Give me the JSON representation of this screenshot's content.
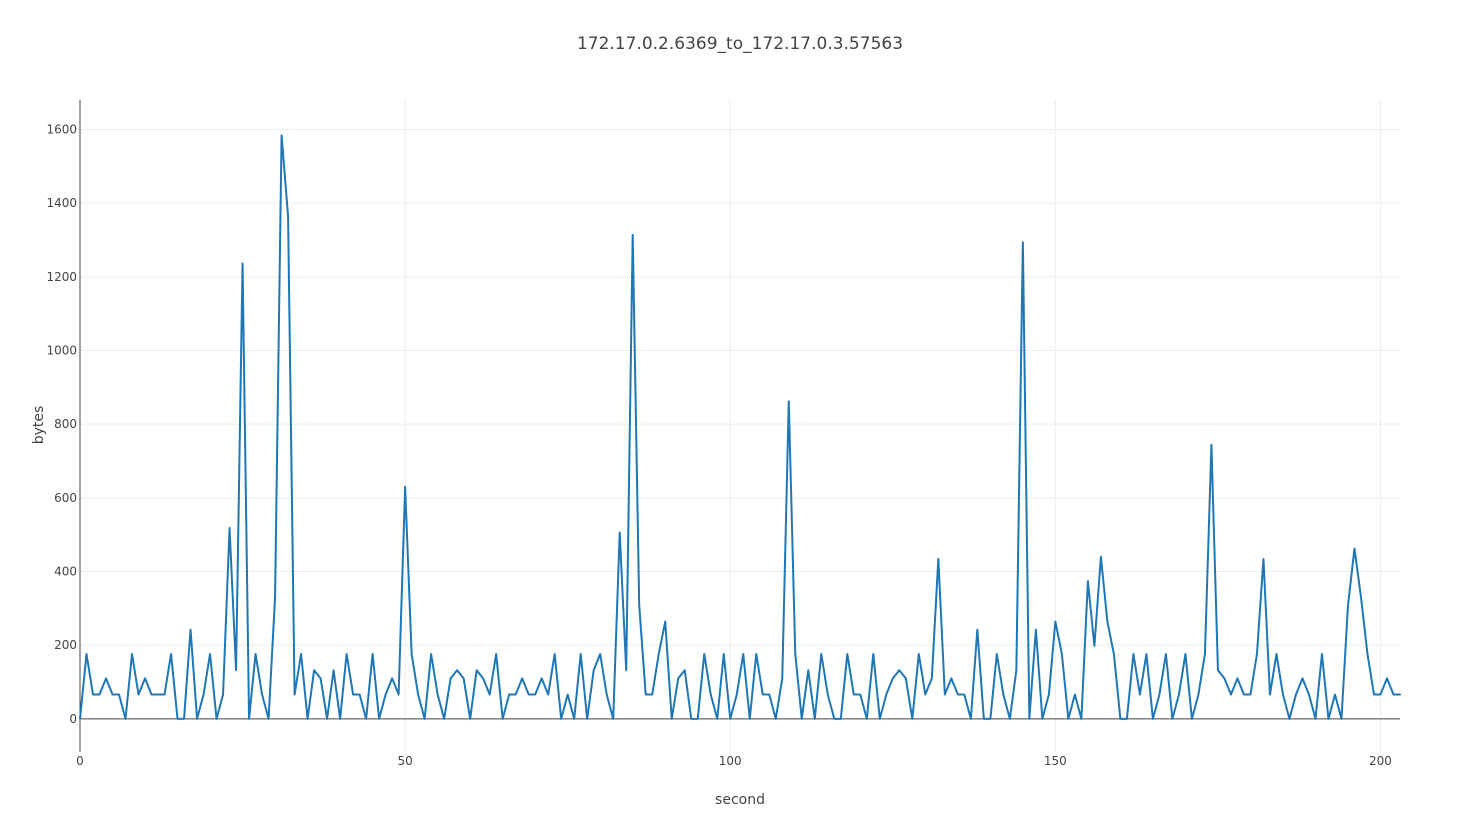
{
  "chart_data": {
    "type": "line",
    "title": "172.17.0.2.6369_to_172.17.0.3.57563",
    "xlabel": "second",
    "ylabel": "bytes",
    "xlim": [
      0,
      203
    ],
    "ylim": [
      -90,
      1680
    ],
    "xticks": [
      0,
      50,
      100,
      150,
      200
    ],
    "yticks": [
      0,
      200,
      400,
      600,
      800,
      1000,
      1200,
      1400,
      1600
    ],
    "grid": true,
    "line_color": "#1f77b4",
    "series": [
      {
        "x": [
          0,
          1,
          2,
          3,
          4,
          5,
          6,
          7,
          8,
          9,
          10,
          11,
          12,
          13,
          14,
          15,
          16,
          17,
          18,
          19,
          20,
          21,
          22,
          23,
          24,
          25,
          26,
          27,
          28,
          29,
          30,
          31,
          32,
          33,
          34,
          35,
          36,
          37,
          38,
          39,
          40,
          41,
          42,
          43,
          44,
          45,
          46,
          47,
          48,
          49,
          50,
          51,
          52,
          53,
          54,
          55,
          56,
          57,
          58,
          59,
          60,
          61,
          62,
          63,
          64,
          65,
          66,
          67,
          68,
          69,
          70,
          71,
          72,
          73,
          74,
          75,
          76,
          77,
          78,
          79,
          80,
          81,
          82,
          83,
          84,
          85,
          86,
          87,
          88,
          89,
          90,
          91,
          92,
          93,
          94,
          95,
          96,
          97,
          98,
          99,
          100,
          101,
          102,
          103,
          104,
          105,
          106,
          107,
          108,
          109,
          110,
          111,
          112,
          113,
          114,
          115,
          116,
          117,
          118,
          119,
          120,
          121,
          122,
          123,
          124,
          125,
          126,
          127,
          128,
          129,
          130,
          131,
          132,
          133,
          134,
          135,
          136,
          137,
          138,
          139,
          140,
          141,
          142,
          143,
          144,
          145,
          146,
          147,
          148,
          149,
          150,
          151,
          152,
          153,
          154,
          155,
          156,
          157,
          158,
          159,
          160,
          161,
          162,
          163,
          164,
          165,
          166,
          167,
          168,
          169,
          170,
          171,
          172,
          173,
          174,
          175,
          176,
          177,
          178,
          179,
          180,
          181,
          182,
          183,
          184,
          185,
          186,
          187,
          188,
          189,
          190,
          191,
          192,
          193,
          194,
          195,
          196,
          197,
          198,
          199,
          200,
          201,
          202,
          203
        ],
        "values": [
          0,
          176,
          66,
          66,
          110,
          66,
          66,
          0,
          176,
          66,
          110,
          66,
          66,
          66,
          176,
          0,
          0,
          242,
          0,
          66,
          176,
          0,
          66,
          518,
          132,
          1236,
          0,
          176,
          66,
          0,
          330,
          1584,
          1364,
          66,
          176,
          0,
          132,
          110,
          0,
          132,
          0,
          176,
          66,
          66,
          0,
          176,
          0,
          66,
          110,
          66,
          630,
          176,
          66,
          0,
          176,
          66,
          0,
          110,
          132,
          110,
          0,
          132,
          110,
          66,
          176,
          0,
          66,
          66,
          110,
          66,
          66,
          110,
          66,
          176,
          0,
          66,
          0,
          176,
          0,
          132,
          176,
          66,
          0,
          506,
          132,
          1314,
          308,
          66,
          66,
          176,
          264,
          0,
          110,
          132,
          0,
          0,
          176,
          66,
          0,
          176,
          0,
          66,
          176,
          0,
          176,
          66,
          66,
          0,
          110,
          862,
          176,
          0,
          132,
          0,
          176,
          66,
          0,
          0,
          176,
          66,
          66,
          0,
          176,
          0,
          66,
          110,
          132,
          110,
          0,
          176,
          66,
          110,
          434,
          66,
          110,
          66,
          66,
          0,
          242,
          0,
          0,
          176,
          66,
          0,
          132,
          1294,
          0,
          242,
          0,
          66,
          264,
          176,
          0,
          66,
          0,
          374,
          198,
          440,
          264,
          176,
          0,
          0,
          176,
          66,
          176,
          0,
          66,
          176,
          0,
          66,
          176,
          0,
          66,
          176,
          744,
          132,
          110,
          66,
          110,
          66,
          66,
          176,
          434,
          66,
          176,
          66,
          0,
          66,
          110,
          66,
          0,
          176,
          0,
          66,
          0,
          308,
          462,
          330,
          176,
          66,
          66,
          110,
          66,
          66
        ]
      }
    ]
  }
}
